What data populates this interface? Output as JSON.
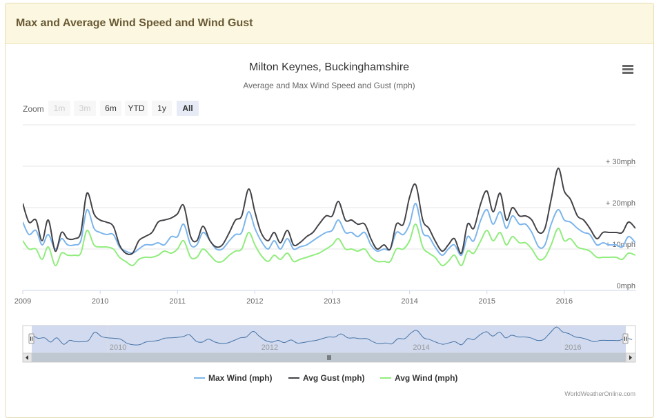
{
  "panel": {
    "title": "Max and Average Wind Speed and Wind Gust"
  },
  "chart_data": {
    "type": "line",
    "title": "Milton Keynes, Buckinghamshire",
    "subtitle": "Average and Max Wind Speed and Gust (mph)",
    "x_ticks": [
      "2009",
      "2010",
      "2011",
      "2012",
      "2013",
      "2014",
      "2015",
      "2016"
    ],
    "y_tick_labels": [
      "0mph",
      "+ 10mph",
      "+ 20mph",
      "+ 30mph"
    ],
    "y_ticks": [
      0,
      10,
      20,
      30
    ],
    "ylim": [
      0,
      35
    ],
    "xlim": [
      2009.0,
      2016.92
    ],
    "grid": true,
    "legend_position": "bottom",
    "zoom": {
      "label": "Zoom",
      "buttons": [
        "1m",
        "3m",
        "6m",
        "YTD",
        "1y",
        "All"
      ],
      "selected": "All",
      "disabled": [
        "1m",
        "3m"
      ]
    },
    "navigator": {
      "labels": [
        "2010",
        "2012",
        "2014",
        "2016"
      ]
    },
    "credit": "WorldWeatherOnline.com",
    "colors": {
      "max": "#7cb5ec",
      "gust": "#434348",
      "avg": "#90ed7d"
    },
    "series": [
      {
        "name": "Max Wind (mph)",
        "color": "#7cb5ec",
        "points": [
          [
            2009.0,
            16.5
          ],
          [
            2009.08,
            13.5
          ],
          [
            2009.17,
            14.5
          ],
          [
            2009.25,
            11
          ],
          [
            2009.33,
            13.5
          ],
          [
            2009.42,
            10
          ],
          [
            2009.5,
            12.5
          ],
          [
            2009.58,
            11
          ],
          [
            2009.67,
            11
          ],
          [
            2009.75,
            12
          ],
          [
            2009.83,
            19.5
          ],
          [
            2009.92,
            15
          ],
          [
            2010.0,
            14
          ],
          [
            2010.08,
            13.5
          ],
          [
            2010.17,
            13.5
          ],
          [
            2010.25,
            10.5
          ],
          [
            2010.33,
            9.5
          ],
          [
            2010.42,
            9
          ],
          [
            2010.5,
            10
          ],
          [
            2010.58,
            11
          ],
          [
            2010.67,
            11
          ],
          [
            2010.75,
            11.5
          ],
          [
            2010.83,
            11
          ],
          [
            2010.92,
            13
          ],
          [
            2011.0,
            13
          ],
          [
            2011.08,
            16
          ],
          [
            2011.17,
            11
          ],
          [
            2011.25,
            11
          ],
          [
            2011.33,
            14
          ],
          [
            2011.42,
            12
          ],
          [
            2011.5,
            10
          ],
          [
            2011.58,
            10
          ],
          [
            2011.67,
            12
          ],
          [
            2011.75,
            13.5
          ],
          [
            2011.83,
            14
          ],
          [
            2011.92,
            19
          ],
          [
            2012.0,
            15
          ],
          [
            2012.08,
            12
          ],
          [
            2012.17,
            10
          ],
          [
            2012.25,
            12
          ],
          [
            2012.33,
            10
          ],
          [
            2012.42,
            12.5
          ],
          [
            2012.5,
            10
          ],
          [
            2012.58,
            10.5
          ],
          [
            2012.67,
            11
          ],
          [
            2012.75,
            12
          ],
          [
            2012.83,
            13
          ],
          [
            2012.92,
            14
          ],
          [
            2013.0,
            14.5
          ],
          [
            2013.08,
            17
          ],
          [
            2013.17,
            14
          ],
          [
            2013.25,
            14
          ],
          [
            2013.33,
            13
          ],
          [
            2013.42,
            14
          ],
          [
            2013.5,
            11
          ],
          [
            2013.58,
            9.5
          ],
          [
            2013.67,
            10
          ],
          [
            2013.75,
            10
          ],
          [
            2013.83,
            14
          ],
          [
            2013.92,
            13.5
          ],
          [
            2014.0,
            16
          ],
          [
            2014.08,
            21
          ],
          [
            2014.17,
            14
          ],
          [
            2014.25,
            13
          ],
          [
            2014.33,
            10.5
          ],
          [
            2014.42,
            8.5
          ],
          [
            2014.5,
            10
          ],
          [
            2014.58,
            11
          ],
          [
            2014.67,
            8.5
          ],
          [
            2014.75,
            13
          ],
          [
            2014.83,
            12
          ],
          [
            2014.92,
            17
          ],
          [
            2015.0,
            19.5
          ],
          [
            2015.08,
            16
          ],
          [
            2015.17,
            19
          ],
          [
            2015.25,
            15
          ],
          [
            2015.33,
            18
          ],
          [
            2015.42,
            16
          ],
          [
            2015.5,
            16
          ],
          [
            2015.58,
            14
          ],
          [
            2015.67,
            10.5
          ],
          [
            2015.75,
            11
          ],
          [
            2015.83,
            16
          ],
          [
            2015.92,
            19.5
          ],
          [
            2016.0,
            17
          ],
          [
            2016.08,
            16.5
          ],
          [
            2016.17,
            15
          ],
          [
            2016.25,
            14
          ],
          [
            2016.33,
            13.5
          ],
          [
            2016.42,
            11
          ],
          [
            2016.5,
            11.5
          ],
          [
            2016.58,
            11
          ],
          [
            2016.67,
            11
          ],
          [
            2016.75,
            10.5
          ],
          [
            2016.83,
            13
          ],
          [
            2016.92,
            11.5
          ]
        ]
      },
      {
        "name": "Avg Gust (mph)",
        "color": "#434348",
        "points": [
          [
            2009.0,
            21
          ],
          [
            2009.08,
            16.5
          ],
          [
            2009.17,
            17
          ],
          [
            2009.25,
            12
          ],
          [
            2009.33,
            17
          ],
          [
            2009.42,
            9.5
          ],
          [
            2009.5,
            14
          ],
          [
            2009.58,
            12.5
          ],
          [
            2009.67,
            12.5
          ],
          [
            2009.75,
            14
          ],
          [
            2009.83,
            23.5
          ],
          [
            2009.92,
            18.5
          ],
          [
            2010.0,
            17
          ],
          [
            2010.08,
            16.5
          ],
          [
            2010.17,
            15.5
          ],
          [
            2010.25,
            11
          ],
          [
            2010.33,
            9
          ],
          [
            2010.42,
            9
          ],
          [
            2010.5,
            12
          ],
          [
            2010.58,
            13
          ],
          [
            2010.67,
            14
          ],
          [
            2010.75,
            16.5
          ],
          [
            2010.83,
            17
          ],
          [
            2010.92,
            17.5
          ],
          [
            2011.0,
            18.5
          ],
          [
            2011.08,
            20.5
          ],
          [
            2011.17,
            13
          ],
          [
            2011.25,
            12
          ],
          [
            2011.33,
            15.5
          ],
          [
            2011.42,
            12
          ],
          [
            2011.5,
            10.5
          ],
          [
            2011.58,
            11
          ],
          [
            2011.67,
            14
          ],
          [
            2011.75,
            17
          ],
          [
            2011.83,
            18
          ],
          [
            2011.92,
            24.5
          ],
          [
            2012.0,
            19
          ],
          [
            2012.08,
            14
          ],
          [
            2012.17,
            12
          ],
          [
            2012.25,
            14
          ],
          [
            2012.33,
            11.5
          ],
          [
            2012.42,
            14.5
          ],
          [
            2012.5,
            11
          ],
          [
            2012.58,
            11.5
          ],
          [
            2012.67,
            13
          ],
          [
            2012.75,
            14
          ],
          [
            2012.83,
            16
          ],
          [
            2012.92,
            18
          ],
          [
            2013.0,
            18
          ],
          [
            2013.08,
            21.5
          ],
          [
            2013.17,
            17
          ],
          [
            2013.25,
            17
          ],
          [
            2013.33,
            16
          ],
          [
            2013.42,
            16
          ],
          [
            2013.5,
            12.5
          ],
          [
            2013.58,
            10
          ],
          [
            2013.67,
            11
          ],
          [
            2013.75,
            10
          ],
          [
            2013.83,
            16
          ],
          [
            2013.92,
            16
          ],
          [
            2014.0,
            22.5
          ],
          [
            2014.08,
            25.5
          ],
          [
            2014.17,
            17
          ],
          [
            2014.25,
            15
          ],
          [
            2014.33,
            12
          ],
          [
            2014.42,
            9.5
          ],
          [
            2014.5,
            11
          ],
          [
            2014.58,
            12.5
          ],
          [
            2014.67,
            9
          ],
          [
            2014.75,
            16
          ],
          [
            2014.83,
            15
          ],
          [
            2014.92,
            21
          ],
          [
            2015.0,
            24
          ],
          [
            2015.08,
            19
          ],
          [
            2015.17,
            23.5
          ],
          [
            2015.25,
            17
          ],
          [
            2015.33,
            20
          ],
          [
            2015.42,
            18
          ],
          [
            2015.5,
            18
          ],
          [
            2015.58,
            17
          ],
          [
            2015.67,
            14
          ],
          [
            2015.75,
            15
          ],
          [
            2015.83,
            22
          ],
          [
            2015.92,
            29.5
          ],
          [
            2016.0,
            24
          ],
          [
            2016.08,
            22
          ],
          [
            2016.17,
            18
          ],
          [
            2016.25,
            17
          ],
          [
            2016.33,
            15
          ],
          [
            2016.42,
            12.5
          ],
          [
            2016.5,
            14
          ],
          [
            2016.58,
            14
          ],
          [
            2016.67,
            14
          ],
          [
            2016.75,
            14
          ],
          [
            2016.83,
            16.5
          ],
          [
            2016.92,
            15
          ]
        ]
      },
      {
        "name": "Avg Wind (mph)",
        "color": "#90ed7d",
        "points": [
          [
            2009.0,
            12
          ],
          [
            2009.08,
            10
          ],
          [
            2009.17,
            10
          ],
          [
            2009.25,
            7.5
          ],
          [
            2009.33,
            10.5
          ],
          [
            2009.42,
            6
          ],
          [
            2009.5,
            9
          ],
          [
            2009.58,
            8.5
          ],
          [
            2009.67,
            8.5
          ],
          [
            2009.75,
            9
          ],
          [
            2009.83,
            14.5
          ],
          [
            2009.92,
            11
          ],
          [
            2010.0,
            10.5
          ],
          [
            2010.08,
            10.5
          ],
          [
            2010.17,
            10
          ],
          [
            2010.25,
            8
          ],
          [
            2010.33,
            7
          ],
          [
            2010.42,
            6
          ],
          [
            2010.5,
            7.5
          ],
          [
            2010.58,
            8
          ],
          [
            2010.67,
            8
          ],
          [
            2010.75,
            8.5
          ],
          [
            2010.83,
            9.5
          ],
          [
            2010.92,
            9
          ],
          [
            2011.0,
            10
          ],
          [
            2011.08,
            12
          ],
          [
            2011.17,
            8
          ],
          [
            2011.25,
            8
          ],
          [
            2011.33,
            10
          ],
          [
            2011.42,
            8.5
          ],
          [
            2011.5,
            7
          ],
          [
            2011.58,
            7
          ],
          [
            2011.67,
            8.5
          ],
          [
            2011.75,
            9.5
          ],
          [
            2011.83,
            10
          ],
          [
            2011.92,
            14
          ],
          [
            2012.0,
            11
          ],
          [
            2012.08,
            8.5
          ],
          [
            2012.17,
            7
          ],
          [
            2012.25,
            8.5
          ],
          [
            2012.33,
            7.5
          ],
          [
            2012.42,
            9
          ],
          [
            2012.5,
            7
          ],
          [
            2012.58,
            7.5
          ],
          [
            2012.67,
            8
          ],
          [
            2012.75,
            8.5
          ],
          [
            2012.83,
            9
          ],
          [
            2012.92,
            10
          ],
          [
            2013.0,
            11
          ],
          [
            2013.08,
            12.5
          ],
          [
            2013.17,
            10
          ],
          [
            2013.25,
            10
          ],
          [
            2013.33,
            9.5
          ],
          [
            2013.42,
            10
          ],
          [
            2013.5,
            8
          ],
          [
            2013.58,
            7
          ],
          [
            2013.67,
            7
          ],
          [
            2013.75,
            7
          ],
          [
            2013.83,
            10
          ],
          [
            2013.92,
            10
          ],
          [
            2014.0,
            12
          ],
          [
            2014.08,
            16
          ],
          [
            2014.17,
            10.5
          ],
          [
            2014.25,
            9
          ],
          [
            2014.33,
            8
          ],
          [
            2014.42,
            6
          ],
          [
            2014.5,
            7
          ],
          [
            2014.58,
            8.5
          ],
          [
            2014.67,
            6
          ],
          [
            2014.75,
            9.5
          ],
          [
            2014.83,
            9
          ],
          [
            2014.92,
            12
          ],
          [
            2015.0,
            14.5
          ],
          [
            2015.08,
            12
          ],
          [
            2015.17,
            14
          ],
          [
            2015.25,
            11
          ],
          [
            2015.33,
            13
          ],
          [
            2015.42,
            11.5
          ],
          [
            2015.5,
            11.5
          ],
          [
            2015.58,
            10
          ],
          [
            2015.67,
            7.5
          ],
          [
            2015.75,
            8
          ],
          [
            2015.83,
            11
          ],
          [
            2015.92,
            15
          ],
          [
            2016.0,
            12
          ],
          [
            2016.08,
            12.5
          ],
          [
            2016.17,
            10.5
          ],
          [
            2016.25,
            10
          ],
          [
            2016.33,
            9.5
          ],
          [
            2016.42,
            8
          ],
          [
            2016.5,
            8
          ],
          [
            2016.58,
            8
          ],
          [
            2016.67,
            8
          ],
          [
            2016.75,
            7.5
          ],
          [
            2016.83,
            9
          ],
          [
            2016.92,
            8.5
          ]
        ]
      }
    ]
  }
}
